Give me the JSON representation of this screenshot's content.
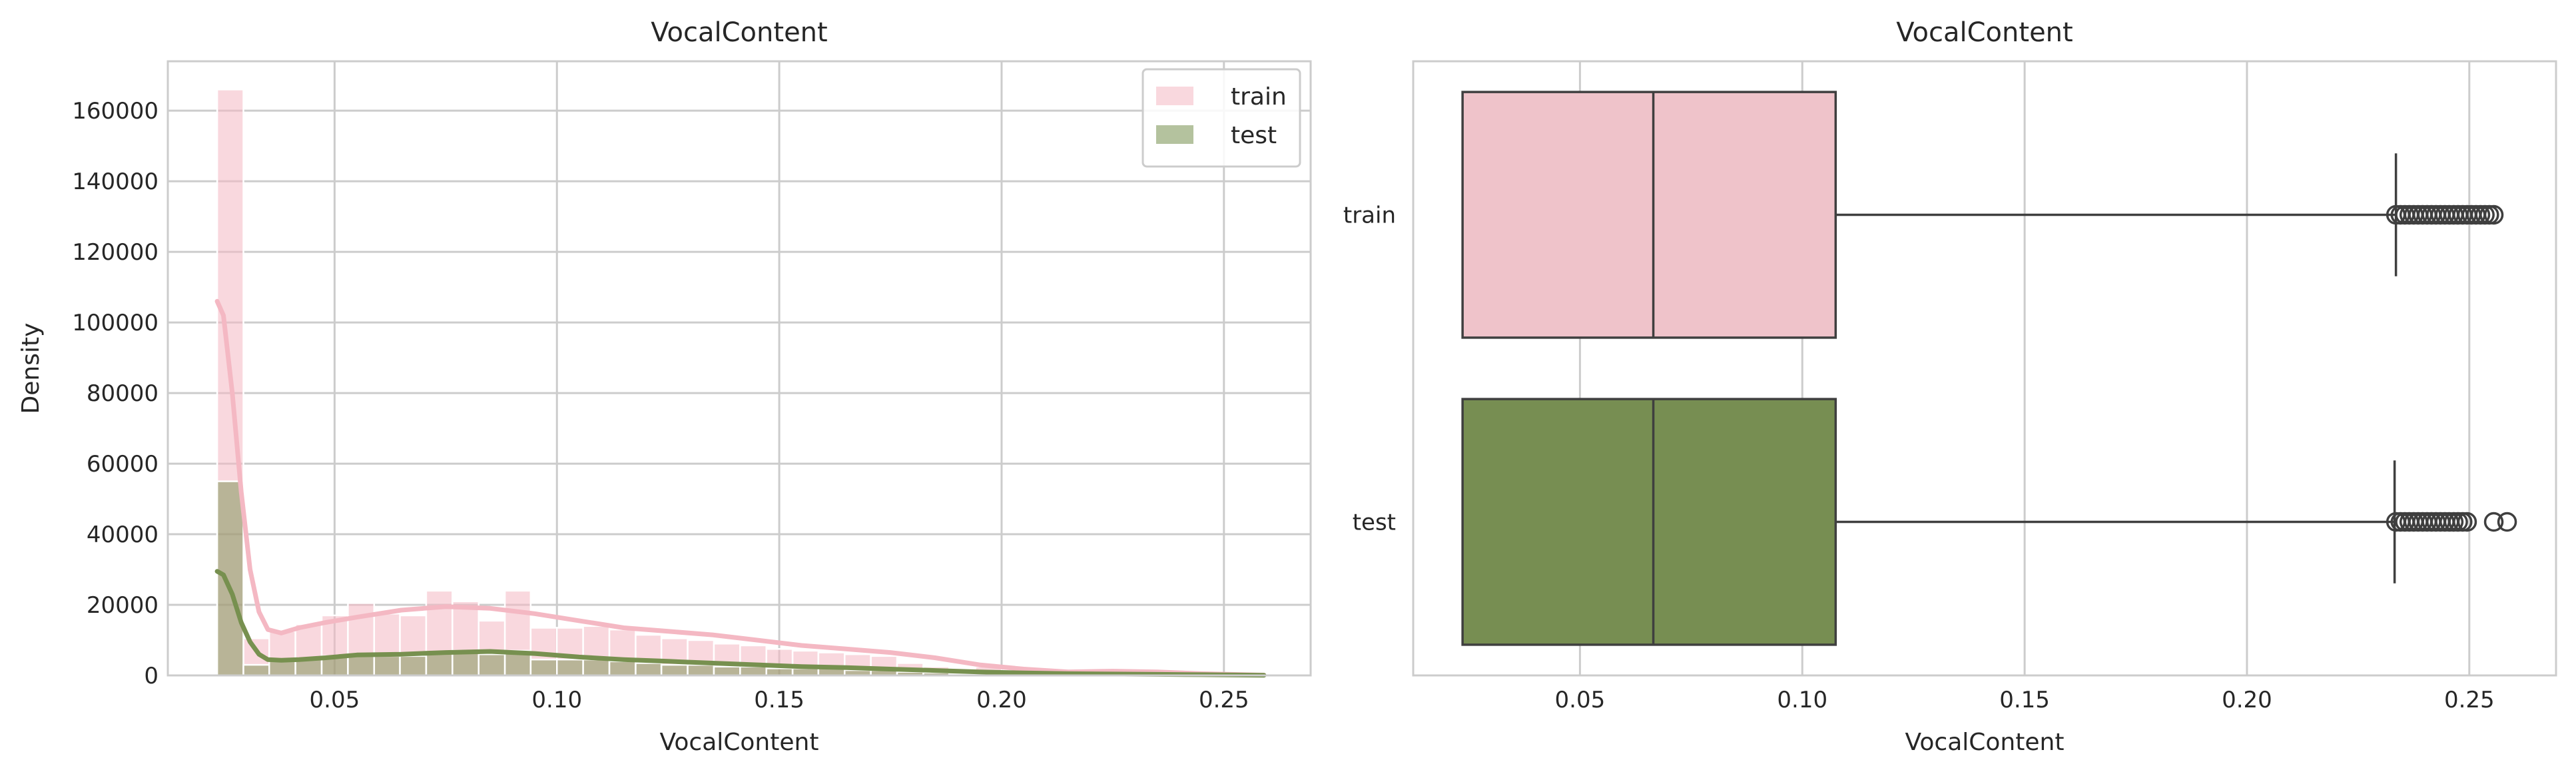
{
  "chart_data": [
    {
      "type": "histogram",
      "title": "VocalContent",
      "xlabel": "VocalContent",
      "ylabel": "Density",
      "xlim": [
        0.0125,
        0.2695
      ],
      "ylim": [
        0,
        174000
      ],
      "xticks": [
        "0.05",
        "0.10",
        "0.15",
        "0.20",
        "0.25"
      ],
      "xtick_values": [
        0.05,
        0.1,
        0.15,
        0.2,
        0.25
      ],
      "yticks": [
        "0",
        "20000",
        "40000",
        "60000",
        "80000",
        "100000",
        "120000",
        "140000",
        "160000"
      ],
      "ytick_values": [
        0,
        20000,
        40000,
        60000,
        80000,
        100000,
        120000,
        140000,
        160000
      ],
      "grid": true,
      "legend": {
        "position": "top-right",
        "entries": [
          "train",
          "test"
        ]
      },
      "bin_edges": [
        0.0236,
        0.0295,
        0.0353,
        0.0412,
        0.0471,
        0.053,
        0.0589,
        0.0647,
        0.0706,
        0.0765,
        0.0824,
        0.0883,
        0.0941,
        0.1,
        0.1059,
        0.1118,
        0.1177,
        0.1235,
        0.1294,
        0.1353,
        0.1412,
        0.1471,
        0.153,
        0.1588,
        0.1647,
        0.1706,
        0.1765,
        0.1824,
        0.1882,
        0.1941,
        0.2,
        0.2059,
        0.2118,
        0.2177,
        0.2236,
        0.2294,
        0.2353,
        0.2412,
        0.2471,
        0.253,
        0.2589
      ],
      "series": [
        {
          "name": "train",
          "color": "#f4b8c3",
          "bin_counts": [
            166000,
            10500,
            12500,
            14500,
            17000,
            20500,
            17500,
            17000,
            24000,
            21000,
            15500,
            24000,
            13500,
            13500,
            14000,
            13000,
            11500,
            10500,
            10000,
            9000,
            8500,
            7500,
            7000,
            6500,
            6000,
            5500,
            3500,
            2500,
            1500,
            2500,
            1200,
            900,
            900,
            900,
            900,
            600,
            400,
            300,
            200,
            150
          ],
          "kde_x": [
            0.0236,
            0.025,
            0.027,
            0.029,
            0.031,
            0.033,
            0.035,
            0.038,
            0.042,
            0.048,
            0.055,
            0.065,
            0.075,
            0.085,
            0.095,
            0.105,
            0.115,
            0.125,
            0.135,
            0.145,
            0.155,
            0.165,
            0.175,
            0.185,
            0.195,
            0.205,
            0.215,
            0.225,
            0.235,
            0.245,
            0.255,
            0.259
          ],
          "kde_y": [
            106000,
            102000,
            80000,
            52000,
            30000,
            18000,
            13000,
            12000,
            13500,
            15000,
            16500,
            18500,
            19500,
            19000,
            17500,
            15500,
            13500,
            12500,
            11500,
            10000,
            8500,
            7500,
            6500,
            5000,
            3000,
            1800,
            1000,
            1200,
            1000,
            500,
            200,
            100
          ]
        },
        {
          "name": "test",
          "color": "#77904f",
          "bin_counts": [
            55000,
            3000,
            4000,
            4500,
            5500,
            6000,
            5500,
            5500,
            6500,
            7000,
            6000,
            7000,
            4500,
            4500,
            4500,
            4000,
            3500,
            3000,
            3000,
            2500,
            2500,
            2000,
            2000,
            2000,
            1500,
            1500,
            1000,
            800,
            500,
            500,
            300,
            300,
            200,
            200,
            200,
            150,
            100,
            100,
            50,
            50
          ],
          "kde_x": [
            0.0236,
            0.025,
            0.027,
            0.029,
            0.031,
            0.033,
            0.035,
            0.038,
            0.042,
            0.048,
            0.055,
            0.065,
            0.075,
            0.085,
            0.095,
            0.105,
            0.115,
            0.125,
            0.135,
            0.145,
            0.155,
            0.165,
            0.175,
            0.185,
            0.195,
            0.205,
            0.215,
            0.225,
            0.235,
            0.245,
            0.255,
            0.259
          ],
          "kde_y": [
            29500,
            28500,
            23000,
            15000,
            9500,
            6000,
            4500,
            4300,
            4500,
            5000,
            5800,
            6000,
            6500,
            6800,
            6200,
            5200,
            4500,
            4000,
            3500,
            3000,
            2500,
            2200,
            1800,
            1400,
            1000,
            700,
            500,
            400,
            300,
            200,
            100,
            50
          ]
        }
      ]
    },
    {
      "type": "box",
      "title": "VocalContent",
      "xlabel": "VocalContent",
      "xlim": [
        0.0125,
        0.2695
      ],
      "xticks": [
        "0.05",
        "0.10",
        "0.15",
        "0.20",
        "0.25"
      ],
      "xtick_values": [
        0.05,
        0.1,
        0.15,
        0.2,
        0.25
      ],
      "categories": [
        "train",
        "test"
      ],
      "grid": true,
      "series": [
        {
          "name": "train",
          "color": "#efc3ca",
          "whisker_low": 0.0236,
          "q1": 0.0236,
          "median": 0.0665,
          "q3": 0.1075,
          "whisker_high": 0.2335,
          "outliers": [
            0.2335,
            0.2345,
            0.2355,
            0.2365,
            0.2375,
            0.2385,
            0.2395,
            0.2405,
            0.2415,
            0.2425,
            0.2435,
            0.2445,
            0.2455,
            0.2465,
            0.2475,
            0.2485,
            0.2495,
            0.2505,
            0.2515,
            0.2525,
            0.2535,
            0.2545,
            0.2555
          ]
        },
        {
          "name": "test",
          "color": "#778e52",
          "whisker_low": 0.0236,
          "q1": 0.0236,
          "median": 0.0665,
          "q3": 0.1075,
          "whisker_high": 0.2332,
          "outliers": [
            0.2335,
            0.2345,
            0.2355,
            0.2365,
            0.2375,
            0.2385,
            0.2395,
            0.2405,
            0.2415,
            0.2425,
            0.2435,
            0.2445,
            0.2455,
            0.2465,
            0.2475,
            0.2485,
            0.2495,
            0.2555,
            0.2585
          ]
        }
      ]
    }
  ]
}
